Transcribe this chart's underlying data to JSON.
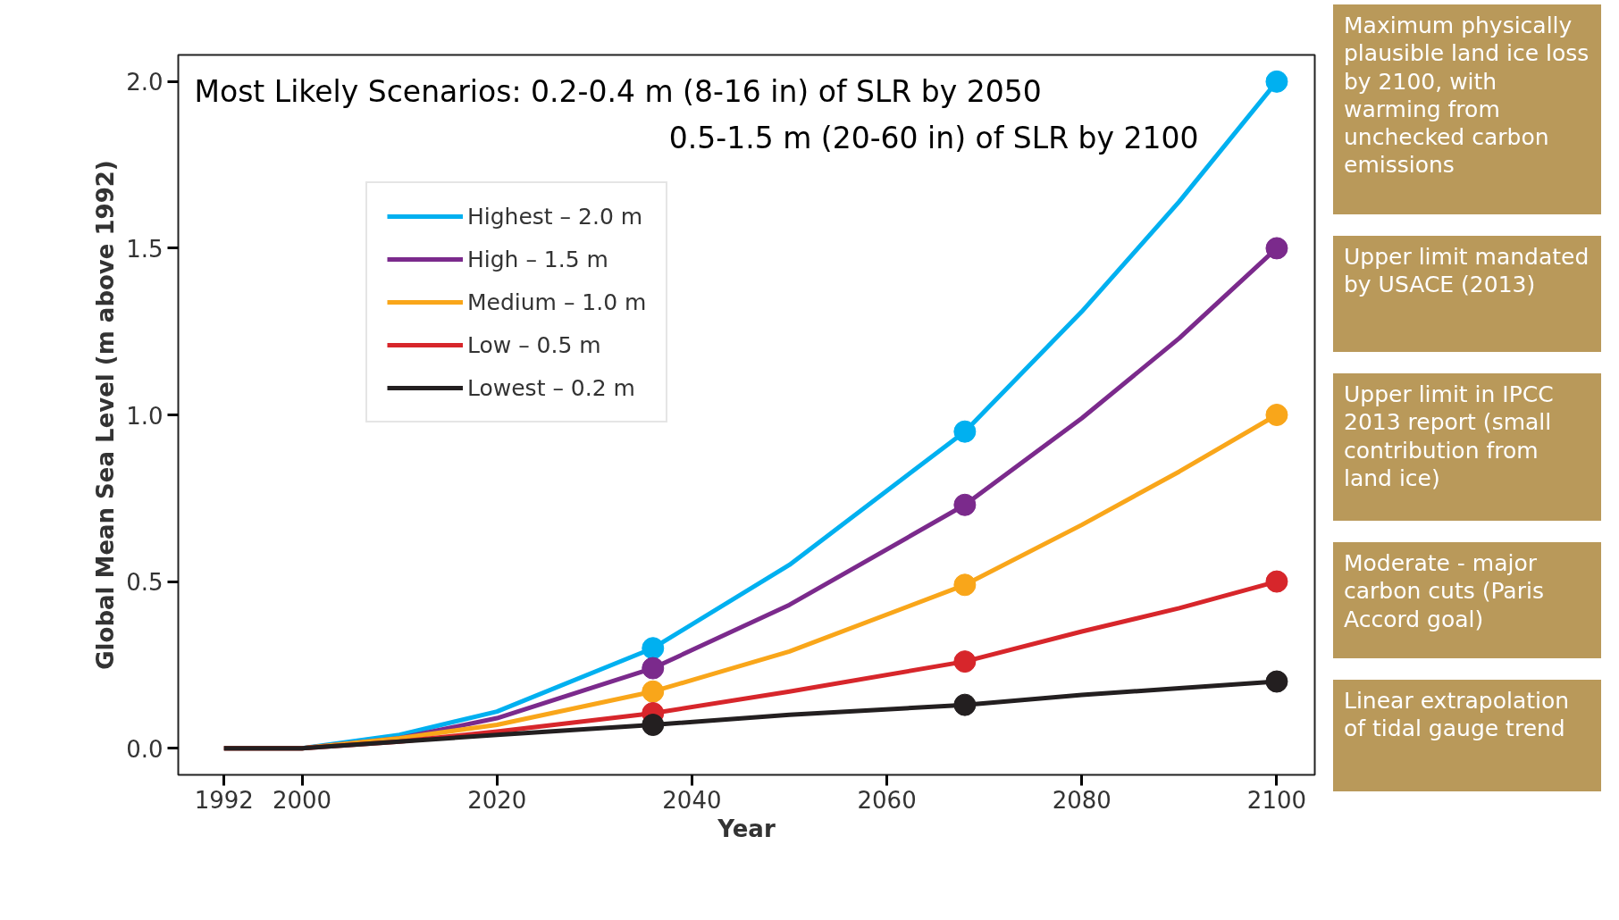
{
  "chart_data": {
    "type": "line",
    "title": "Most Likely Scenarios: 0.2-0.4 m (8-16 in) of SLR by 2050",
    "subtitle": "0.5-1.5 m (20-60 in) of SLR by 2100",
    "xlabel": "Year",
    "ylabel": "Global Mean Sea Level (m above 1992)",
    "xlim": [
      1987.3,
      2103.9
    ],
    "ylim": [
      -0.08,
      2.08
    ],
    "xticks": [
      1992,
      2000,
      2020,
      2040,
      2060,
      2080,
      2100
    ],
    "yticks": [
      {
        "value": 0,
        "label": "0.0"
      },
      {
        "value": 0.5,
        "label": "0.5"
      },
      {
        "value": 1,
        "label": "1.0"
      },
      {
        "value": 1.5,
        "label": "1.5"
      },
      {
        "value": 2,
        "label": "2.0"
      }
    ],
    "legend": "top left",
    "line_style": "solid",
    "series": [
      {
        "name": "Highest – 2.0 m",
        "color": "#00b0f0",
        "x": [
          1992,
          2000,
          2010,
          2020,
          2036,
          2050,
          2068,
          2080,
          2090,
          2100
        ],
        "values": [
          0,
          0,
          0.04,
          0.11,
          0.3,
          0.55,
          0.95,
          1.31,
          1.64,
          2.0
        ]
      },
      {
        "name": "High – 1.5 m",
        "color": "#7b2a8c",
        "x": [
          1992,
          2000,
          2010,
          2020,
          2036,
          2050,
          2068,
          2080,
          2090,
          2100
        ],
        "values": [
          0,
          0,
          0.03,
          0.09,
          0.24,
          0.43,
          0.73,
          0.99,
          1.23,
          1.5
        ]
      },
      {
        "name": "Medium – 1.0 m",
        "color": "#f9a61a",
        "x": [
          1992,
          2000,
          2010,
          2020,
          2036,
          2050,
          2068,
          2080,
          2090,
          2100
        ],
        "values": [
          0,
          0,
          0.03,
          0.07,
          0.17,
          0.29,
          0.49,
          0.67,
          0.83,
          1.0
        ]
      },
      {
        "name": "Low – 0.5 m",
        "color": "#d7262b",
        "x": [
          1992,
          2000,
          2010,
          2020,
          2036,
          2050,
          2068,
          2080,
          2090,
          2100
        ],
        "values": [
          0,
          0,
          0.02,
          0.05,
          0.105,
          0.17,
          0.26,
          0.35,
          0.42,
          0.5
        ]
      },
      {
        "name": "Lowest – 0.2 m",
        "color": "#231f20",
        "x": [
          1992,
          2000,
          2010,
          2020,
          2036,
          2050,
          2068,
          2080,
          2090,
          2100
        ],
        "values": [
          0,
          0,
          0.02,
          0.04,
          0.07,
          0.1,
          0.13,
          0.16,
          0.18,
          0.2
        ]
      },
      {
        "type": "scatter",
        "marker": "circle",
        "color": "#00b0f0",
        "x": [
          2036,
          2068,
          2100
        ],
        "values": [
          0.3,
          0.95,
          2.0
        ]
      },
      {
        "type": "scatter",
        "marker": "circle",
        "color": "#7b2a8c",
        "x": [
          2036,
          2068,
          2100
        ],
        "values": [
          0.24,
          0.73,
          1.5
        ]
      },
      {
        "type": "scatter",
        "marker": "circle",
        "color": "#f9a61a",
        "x": [
          2036,
          2068,
          2100
        ],
        "values": [
          0.17,
          0.49,
          1.0
        ]
      },
      {
        "type": "scatter",
        "marker": "circle",
        "color": "#d7262b",
        "x": [
          2036,
          2068,
          2100
        ],
        "values": [
          0.105,
          0.26,
          0.5
        ]
      },
      {
        "type": "scatter",
        "marker": "circle",
        "color": "#231f20",
        "x": [
          2036,
          2068,
          2100
        ],
        "values": [
          0.07,
          0.13,
          0.2
        ]
      }
    ],
    "annotations": [
      "Maximum physically plausible land ice loss by 2100, with warming from unchecked carbon emissions",
      "Upper limit mandated by USACE (2013)",
      "Upper limit in IPCC 2013 report (small contribution from land ice)",
      "Moderate - major carbon cuts (Paris Accord goal)",
      "Linear extrapolation of tidal gauge trend"
    ]
  }
}
